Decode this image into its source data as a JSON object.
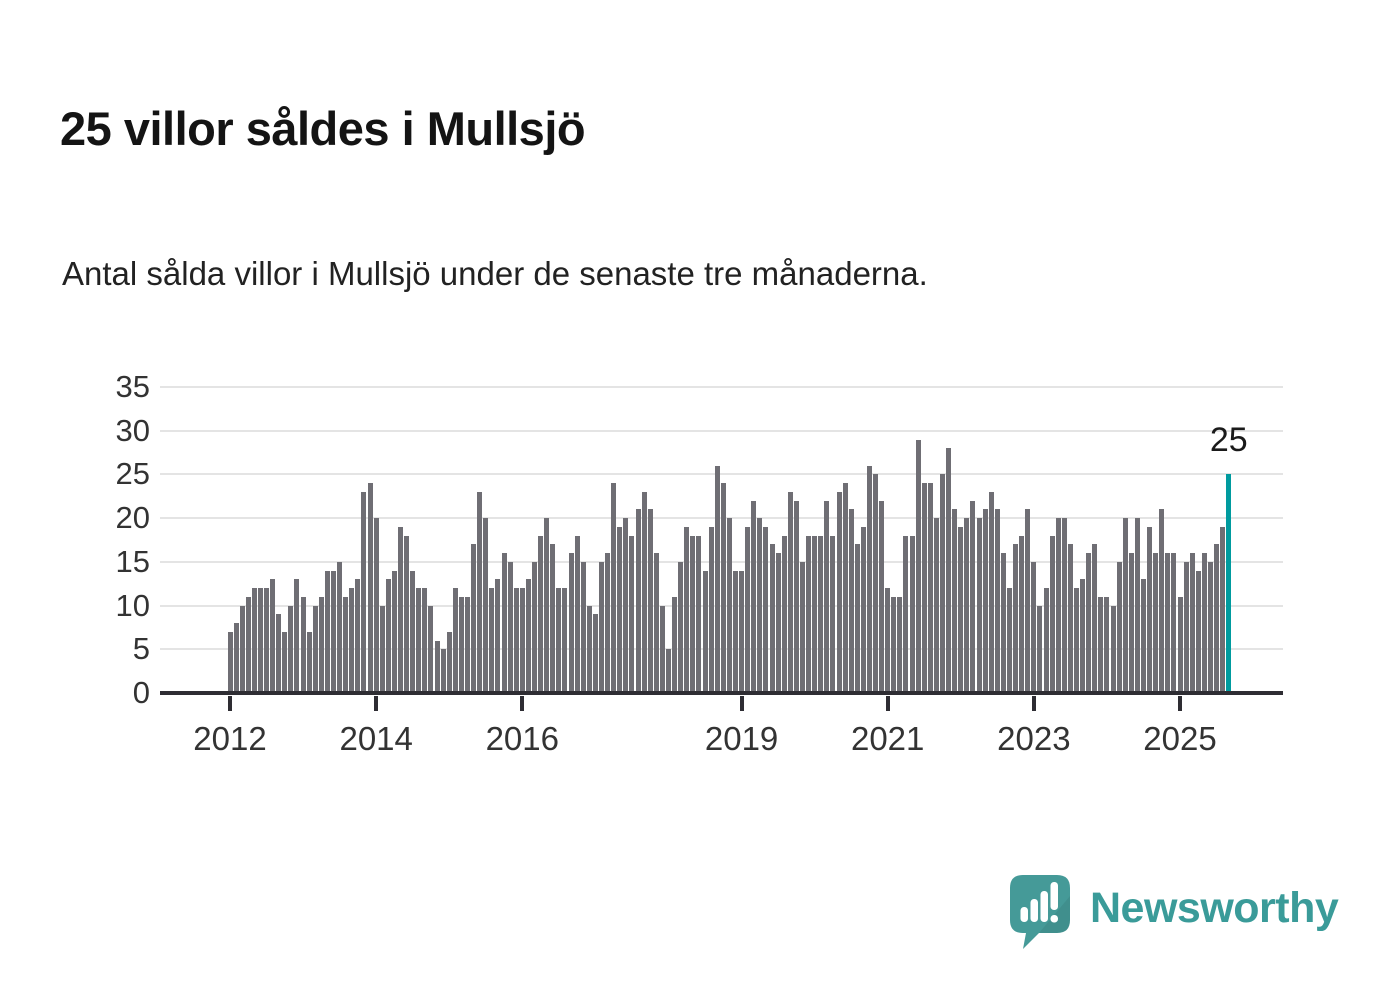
{
  "page": {
    "title": "25 villor såldes i Mullsjö",
    "subtitle": "Antal sålda villor i Mullsjö under de senaste tre månaderna."
  },
  "annotation": {
    "label": "25"
  },
  "branding": {
    "name": "Newsworthy"
  },
  "colors": {
    "bar": "#6f6e74",
    "highlight": "#009b9f",
    "grid": "#e4e4e4",
    "axis": "#2e2d33",
    "axis_text": "#333333",
    "brand_teal": "#3a9b99"
  },
  "chart_data": {
    "type": "bar",
    "title": "25 villor såldes i Mullsjö",
    "subtitle": "Antal sålda villor i Mullsjö under de senaste tre månaderna.",
    "frequency": "monthly",
    "start": "2012-01",
    "end": "2025-09",
    "ylabel": "",
    "xlabel": "",
    "ylim": [
      0,
      37
    ],
    "grid": true,
    "y_ticks": [
      0,
      5,
      10,
      15,
      20,
      25,
      30,
      35
    ],
    "x_tick_labels": [
      "2012",
      "2014",
      "2016",
      "2019",
      "2021",
      "2023",
      "2025"
    ],
    "x_tick_months": [
      0,
      24,
      48,
      84,
      108,
      132,
      156
    ],
    "highlight_last": true,
    "highlight_value": 25,
    "values": [
      7,
      8,
      10,
      11,
      12,
      12,
      12,
      13,
      9,
      7,
      10,
      13,
      11,
      7,
      10,
      11,
      14,
      14,
      15,
      11,
      12,
      13,
      23,
      24,
      20,
      10,
      13,
      14,
      19,
      18,
      14,
      12,
      12,
      10,
      6,
      5,
      7,
      12,
      11,
      11,
      17,
      23,
      20,
      12,
      13,
      16,
      15,
      12,
      12,
      13,
      15,
      18,
      20,
      17,
      12,
      12,
      16,
      18,
      15,
      10,
      9,
      15,
      16,
      24,
      19,
      20,
      18,
      21,
      23,
      21,
      16,
      10,
      5,
      11,
      15,
      19,
      18,
      18,
      14,
      19,
      26,
      24,
      20,
      14,
      14,
      19,
      22,
      20,
      19,
      17,
      16,
      18,
      23,
      22,
      15,
      18,
      18,
      18,
      22,
      18,
      23,
      24,
      21,
      17,
      19,
      26,
      25,
      22,
      12,
      11,
      11,
      18,
      18,
      29,
      24,
      24,
      20,
      25,
      28,
      21,
      19,
      20,
      22,
      20,
      21,
      23,
      21,
      16,
      12,
      17,
      18,
      21,
      15,
      10,
      12,
      18,
      20,
      20,
      17,
      12,
      13,
      16,
      17,
      11,
      11,
      10,
      15,
      20,
      16,
      20,
      13,
      19,
      16,
      21,
      16,
      16,
      11,
      15,
      16,
      14,
      16,
      15,
      17,
      19,
      25
    ]
  }
}
